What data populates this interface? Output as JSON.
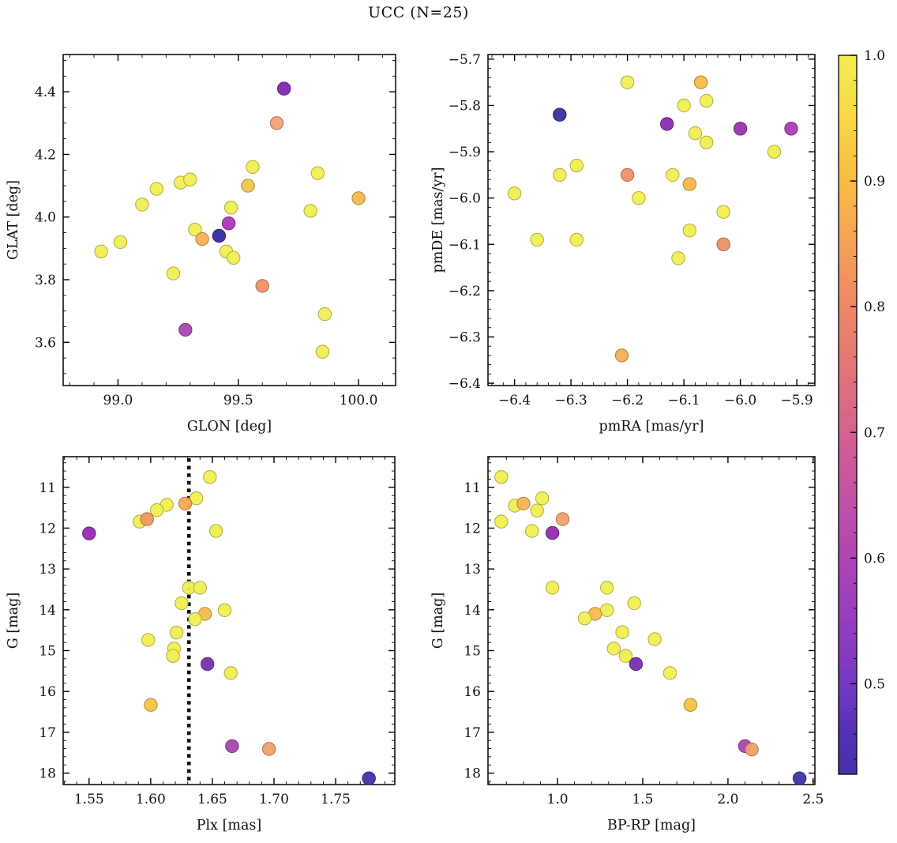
{
  "title": "UCC (N=25)",
  "chart_data": {
    "type": "scatter",
    "figure_title": "UCC (N=25)",
    "n_points": 25,
    "colorbar": {
      "vmin": 0.428,
      "vmax": 1.0,
      "tick_labels": [
        "1.0",
        "0.9",
        "0.8",
        "0.7",
        "0.6",
        "0.5"
      ],
      "tick_values": [
        1.0,
        0.9,
        0.8,
        0.7,
        0.6,
        0.5
      ],
      "minor_step": 0.02,
      "gradient_stops": [
        [
          0.0,
          "#f1ee4e"
        ],
        [
          0.09,
          "#f8d644"
        ],
        [
          0.175,
          "#f9bc42"
        ],
        [
          0.26,
          "#f5a156"
        ],
        [
          0.35,
          "#ee8764"
        ],
        [
          0.44,
          "#e27379"
        ],
        [
          0.525,
          "#d5618f"
        ],
        [
          0.61,
          "#c452a5"
        ],
        [
          0.7,
          "#b046b6"
        ],
        [
          0.79,
          "#963dbf"
        ],
        [
          0.875,
          "#7338c3"
        ],
        [
          0.94,
          "#5532b8"
        ],
        [
          1.0,
          "#4530ab"
        ]
      ]
    },
    "panels": [
      {
        "id": "glon-glat",
        "xlabel": "GLON [deg]",
        "ylabel": "GLAT [deg]",
        "xlim": [
          98.772,
          100.154
        ],
        "ylim_bottom_top": [
          3.462,
          4.519
        ],
        "xticks": [
          [
            99.0,
            "99.0"
          ],
          [
            99.5,
            "99.5"
          ],
          [
            100.0,
            "100.0"
          ]
        ],
        "yticks": [
          [
            3.6,
            "3.6"
          ],
          [
            3.8,
            "3.8"
          ],
          [
            4.0,
            "4.0"
          ],
          [
            4.2,
            "4.2"
          ],
          [
            4.4,
            "4.4"
          ]
        ],
        "xminor": 0.1,
        "yminor": 0.05,
        "points": [
          {
            "x": 99.69,
            "y": 4.41,
            "c": "#8227ae"
          },
          {
            "x": 99.66,
            "y": 4.3,
            "c": "#efa173"
          },
          {
            "x": 99.56,
            "y": 4.16,
            "c": "#f0ef52"
          },
          {
            "x": 99.83,
            "y": 4.14,
            "c": "#f0ef52"
          },
          {
            "x": 99.26,
            "y": 4.11,
            "c": "#f0ef52"
          },
          {
            "x": 99.3,
            "y": 4.12,
            "c": "#f0ef52"
          },
          {
            "x": 99.16,
            "y": 4.09,
            "c": "#f0ef52"
          },
          {
            "x": 99.54,
            "y": 4.1,
            "c": "#f4c24c"
          },
          {
            "x": 99.1,
            "y": 4.04,
            "c": "#f0ef52"
          },
          {
            "x": 100.0,
            "y": 4.06,
            "c": "#f2b84e"
          },
          {
            "x": 99.47,
            "y": 4.03,
            "c": "#f0ef52"
          },
          {
            "x": 99.8,
            "y": 4.02,
            "c": "#f0ef52"
          },
          {
            "x": 99.46,
            "y": 3.98,
            "c": "#ad36b6"
          },
          {
            "x": 99.32,
            "y": 3.96,
            "c": "#f0ef52"
          },
          {
            "x": 99.42,
            "y": 3.94,
            "c": "#332a9e"
          },
          {
            "x": 99.35,
            "y": 3.93,
            "c": "#f6b052"
          },
          {
            "x": 99.01,
            "y": 3.92,
            "c": "#f0ef52"
          },
          {
            "x": 98.93,
            "y": 3.89,
            "c": "#f0ef52"
          },
          {
            "x": 99.45,
            "y": 3.89,
            "c": "#f0ef52"
          },
          {
            "x": 99.48,
            "y": 3.87,
            "c": "#f0ef52"
          },
          {
            "x": 99.23,
            "y": 3.82,
            "c": "#f0ef52"
          },
          {
            "x": 99.6,
            "y": 3.78,
            "c": "#ef9168"
          },
          {
            "x": 99.86,
            "y": 3.69,
            "c": "#f3ee56"
          },
          {
            "x": 99.28,
            "y": 3.64,
            "c": "#a944b2"
          },
          {
            "x": 99.85,
            "y": 3.57,
            "c": "#f0ef52"
          }
        ]
      },
      {
        "id": "pmra-pmde",
        "xlabel": "pmRA [mas/yr]",
        "ylabel": "pmDE [mas/yr]",
        "xlim": [
          -6.447,
          -5.868
        ],
        "ylim_bottom_top": [
          -6.405,
          -5.69
        ],
        "xticks": [
          [
            -6.4,
            "−6.4"
          ],
          [
            -6.3,
            "−6.3"
          ],
          [
            -6.2,
            "−6.2"
          ],
          [
            -6.1,
            "−6.1"
          ],
          [
            -6.0,
            "−6.0"
          ],
          [
            -5.9,
            "−5.9"
          ]
        ],
        "yticks": [
          [
            -6.4,
            "−6.4"
          ],
          [
            -6.3,
            "−6.3"
          ],
          [
            -6.2,
            "−6.2"
          ],
          [
            -6.1,
            "−6.1"
          ],
          [
            -6.0,
            "−6.0"
          ],
          [
            -5.9,
            "−5.9"
          ],
          [
            -5.8,
            "−5.8"
          ],
          [
            -5.7,
            "−5.7"
          ]
        ],
        "xminor": 0.02,
        "yminor": 0.02,
        "points": [
          {
            "x": -6.2,
            "y": -5.75,
            "c": "#f0ef52"
          },
          {
            "x": -6.07,
            "y": -5.75,
            "c": "#f5bc47"
          },
          {
            "x": -6.1,
            "y": -5.8,
            "c": "#f0ef52"
          },
          {
            "x": -6.06,
            "y": -5.79,
            "c": "#f0ef52"
          },
          {
            "x": -6.32,
            "y": -5.82,
            "c": "#3a2f9f"
          },
          {
            "x": -6.13,
            "y": -5.84,
            "c": "#8b2cb5"
          },
          {
            "x": -6.08,
            "y": -5.86,
            "c": "#f0ef52"
          },
          {
            "x": -6.0,
            "y": -5.85,
            "c": "#9b32ad"
          },
          {
            "x": -5.91,
            "y": -5.85,
            "c": "#ad3cb5"
          },
          {
            "x": -6.06,
            "y": -5.88,
            "c": "#f0ef52"
          },
          {
            "x": -5.94,
            "y": -5.9,
            "c": "#f0ef52"
          },
          {
            "x": -6.29,
            "y": -5.93,
            "c": "#f0ef52"
          },
          {
            "x": -6.32,
            "y": -5.95,
            "c": "#f0ef52"
          },
          {
            "x": -6.2,
            "y": -5.95,
            "c": "#ef9168"
          },
          {
            "x": -6.12,
            "y": -5.95,
            "c": "#f0ef52"
          },
          {
            "x": -6.09,
            "y": -5.97,
            "c": "#f5b84a"
          },
          {
            "x": -6.4,
            "y": -5.99,
            "c": "#f0ef52"
          },
          {
            "x": -6.18,
            "y": -6.0,
            "c": "#f0ef52"
          },
          {
            "x": -6.03,
            "y": -6.03,
            "c": "#f0ef52"
          },
          {
            "x": -6.09,
            "y": -6.07,
            "c": "#f0ef52"
          },
          {
            "x": -6.36,
            "y": -6.09,
            "c": "#f0ef52"
          },
          {
            "x": -6.29,
            "y": -6.09,
            "c": "#f0ef52"
          },
          {
            "x": -6.03,
            "y": -6.1,
            "c": "#ee8f66"
          },
          {
            "x": -6.11,
            "y": -6.13,
            "c": "#f0ef52"
          },
          {
            "x": -6.21,
            "y": -6.34,
            "c": "#f7ae53"
          }
        ]
      },
      {
        "id": "plx-g",
        "xlabel": "Plx [mas]",
        "ylabel": "G [mag]",
        "xlim": [
          1.529,
          1.798
        ],
        "ylim_bottom_top": [
          18.28,
          10.25
        ],
        "xticks": [
          [
            1.55,
            "1.55"
          ],
          [
            1.6,
            "1.60"
          ],
          [
            1.65,
            "1.65"
          ],
          [
            1.7,
            "1.70"
          ],
          [
            1.75,
            "1.75"
          ]
        ],
        "yticks": [
          [
            11,
            "11"
          ],
          [
            12,
            "12"
          ],
          [
            13,
            "13"
          ],
          [
            14,
            "14"
          ],
          [
            15,
            "15"
          ],
          [
            16,
            "16"
          ],
          [
            17,
            "17"
          ],
          [
            18,
            "18"
          ]
        ],
        "xminor": 0.01,
        "yminor": 0.2,
        "vline": 1.631,
        "points": [
          {
            "x": 1.648,
            "y": 10.75,
            "c": "#f0ef52"
          },
          {
            "x": 1.637,
            "y": 11.27,
            "c": "#f0ef52"
          },
          {
            "x": 1.628,
            "y": 11.4,
            "c": "#f6a953"
          },
          {
            "x": 1.613,
            "y": 11.43,
            "c": "#f0ef52"
          },
          {
            "x": 1.605,
            "y": 11.56,
            "c": "#f0ef52"
          },
          {
            "x": 1.591,
            "y": 11.84,
            "c": "#f0ef52"
          },
          {
            "x": 1.597,
            "y": 11.78,
            "c": "#f09a60"
          },
          {
            "x": 1.653,
            "y": 12.07,
            "c": "#f0ef52"
          },
          {
            "x": 1.55,
            "y": 12.13,
            "c": "#952bb0"
          },
          {
            "x": 1.631,
            "y": 13.46,
            "c": "#f0ef52"
          },
          {
            "x": 1.64,
            "y": 13.46,
            "c": "#f0ef52"
          },
          {
            "x": 1.625,
            "y": 13.84,
            "c": "#f0ef52"
          },
          {
            "x": 1.66,
            "y": 14.01,
            "c": "#f0ef52"
          },
          {
            "x": 1.644,
            "y": 14.1,
            "c": "#f4bc4c"
          },
          {
            "x": 1.636,
            "y": 14.23,
            "c": "#f0ef52"
          },
          {
            "x": 1.621,
            "y": 14.56,
            "c": "#f0ef52"
          },
          {
            "x": 1.598,
            "y": 14.74,
            "c": "#f0ef52"
          },
          {
            "x": 1.619,
            "y": 14.95,
            "c": "#f0ef52"
          },
          {
            "x": 1.618,
            "y": 15.13,
            "c": "#f0ef52"
          },
          {
            "x": 1.646,
            "y": 15.33,
            "c": "#7b2fae"
          },
          {
            "x": 1.665,
            "y": 15.55,
            "c": "#f0ef52"
          },
          {
            "x": 1.6,
            "y": 16.33,
            "c": "#f5c243"
          },
          {
            "x": 1.666,
            "y": 17.34,
            "c": "#a944b2"
          },
          {
            "x": 1.696,
            "y": 17.41,
            "c": "#f0a06c"
          },
          {
            "x": 1.777,
            "y": 18.13,
            "c": "#3f34a8"
          }
        ]
      },
      {
        "id": "bprp-g",
        "xlabel": "BP-RP [mag]",
        "ylabel": "G [mag]",
        "xlim": [
          0.592,
          2.51
        ],
        "ylim_bottom_top": [
          18.28,
          10.25
        ],
        "xticks": [
          [
            1.0,
            "1.0"
          ],
          [
            1.5,
            "1.5"
          ],
          [
            2.0,
            "2.0"
          ],
          [
            2.5,
            "2.5"
          ]
        ],
        "yticks": [
          [
            11,
            "11"
          ],
          [
            12,
            "12"
          ],
          [
            13,
            "13"
          ],
          [
            14,
            "14"
          ],
          [
            15,
            "15"
          ],
          [
            16,
            "16"
          ],
          [
            17,
            "17"
          ],
          [
            18,
            "18"
          ]
        ],
        "xminor": 0.1,
        "yminor": 0.2,
        "points": [
          {
            "x": 0.67,
            "y": 10.75,
            "c": "#f0ef52"
          },
          {
            "x": 0.91,
            "y": 11.27,
            "c": "#f0ef52"
          },
          {
            "x": 0.75,
            "y": 11.45,
            "c": "#f0ef52"
          },
          {
            "x": 0.8,
            "y": 11.4,
            "c": "#f4b44e"
          },
          {
            "x": 0.88,
            "y": 11.57,
            "c": "#f0ef52"
          },
          {
            "x": 0.67,
            "y": 11.84,
            "c": "#f0ef52"
          },
          {
            "x": 1.03,
            "y": 11.78,
            "c": "#f0a070"
          },
          {
            "x": 0.85,
            "y": 12.07,
            "c": "#f0ef52"
          },
          {
            "x": 0.97,
            "y": 12.12,
            "c": "#952bb0"
          },
          {
            "x": 0.97,
            "y": 13.46,
            "c": "#f0ef52"
          },
          {
            "x": 1.29,
            "y": 13.46,
            "c": "#f0ef52"
          },
          {
            "x": 1.45,
            "y": 13.84,
            "c": "#f0ef52"
          },
          {
            "x": 1.29,
            "y": 14.01,
            "c": "#f0ef52"
          },
          {
            "x": 1.22,
            "y": 14.1,
            "c": "#f4bc4c"
          },
          {
            "x": 1.16,
            "y": 14.21,
            "c": "#f0ef52"
          },
          {
            "x": 1.38,
            "y": 14.55,
            "c": "#f0ef52"
          },
          {
            "x": 1.57,
            "y": 14.72,
            "c": "#f0ef52"
          },
          {
            "x": 1.33,
            "y": 14.95,
            "c": "#f0ef52"
          },
          {
            "x": 1.4,
            "y": 15.13,
            "c": "#f0ef52"
          },
          {
            "x": 1.46,
            "y": 15.33,
            "c": "#7b2fae"
          },
          {
            "x": 1.66,
            "y": 15.55,
            "c": "#f0ef52"
          },
          {
            "x": 1.78,
            "y": 16.33,
            "c": "#f5c243"
          },
          {
            "x": 2.1,
            "y": 17.34,
            "c": "#a944b2"
          },
          {
            "x": 2.14,
            "y": 17.42,
            "c": "#f0a06c"
          },
          {
            "x": 2.42,
            "y": 18.13,
            "c": "#3f34a8"
          }
        ]
      }
    ]
  }
}
